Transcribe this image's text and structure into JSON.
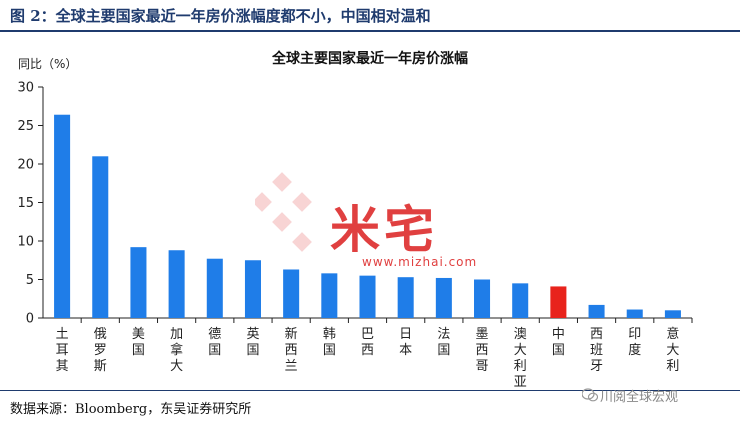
{
  "figure_title": "图 2：全球主要国家最近一年房价涨幅度都不小，中国相对温和",
  "source": "数据来源：Bloomberg，东吴证券研究所",
  "watermark": {
    "text": "米宅",
    "url": "www.mizhai.com"
  },
  "wechat_label": "川阅全球宏观",
  "chart_data": {
    "type": "bar",
    "title": "全球主要国家最近一年房价涨幅",
    "ylabel": "同比（%）",
    "xlabel": "",
    "ylim": [
      0,
      30
    ],
    "yticks": [
      0,
      5,
      10,
      15,
      20,
      25,
      30
    ],
    "grid": false,
    "categories": [
      "土耳其",
      "俄罗斯",
      "美国",
      "加拿大",
      "德国",
      "英国",
      "新西兰",
      "韩国",
      "巴西",
      "日本",
      "法国",
      "墨西哥",
      "澳大利亚",
      "中国",
      "西班牙",
      "印度",
      "意大利"
    ],
    "values": [
      26.4,
      21.0,
      9.2,
      8.8,
      7.7,
      7.5,
      6.3,
      5.8,
      5.5,
      5.3,
      5.2,
      5.0,
      4.5,
      4.1,
      1.7,
      1.1,
      1.0
    ],
    "colors": {
      "default": "#1f7de8",
      "highlight": "#e8231c",
      "highlight_category": "中国"
    }
  }
}
